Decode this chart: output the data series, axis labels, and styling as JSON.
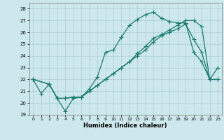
{
  "line1_x": [
    0,
    1,
    2,
    3,
    4,
    5,
    6,
    7,
    8,
    9,
    10,
    11,
    12,
    13,
    14,
    15,
    16,
    17,
    18,
    19,
    20,
    21,
    22,
    23
  ],
  "line1_y": [
    22.0,
    20.8,
    21.6,
    20.4,
    19.3,
    20.4,
    20.5,
    21.2,
    22.2,
    24.3,
    24.5,
    25.6,
    26.6,
    27.1,
    27.5,
    27.7,
    27.2,
    26.9,
    26.8,
    26.8,
    24.3,
    23.5,
    22.0,
    23.0
  ],
  "line2_x": [
    0,
    2,
    3,
    4,
    5,
    6,
    7,
    8,
    9,
    10,
    11,
    12,
    13,
    14,
    15,
    16,
    17,
    18,
    19,
    20,
    21,
    22,
    23
  ],
  "line2_y": [
    22.0,
    21.6,
    20.4,
    20.4,
    20.5,
    20.5,
    21.0,
    21.5,
    22.0,
    22.5,
    23.0,
    23.5,
    24.0,
    24.5,
    25.2,
    25.7,
    26.0,
    26.3,
    26.7,
    25.4,
    24.3,
    22.0,
    22.0
  ],
  "line3_x": [
    0,
    2,
    3,
    4,
    5,
    6,
    7,
    8,
    9,
    10,
    11,
    12,
    13,
    14,
    15,
    16,
    17,
    18,
    19,
    20,
    21,
    22,
    23
  ],
  "line3_y": [
    22.0,
    21.6,
    20.4,
    20.4,
    20.5,
    20.5,
    21.0,
    21.5,
    22.0,
    22.5,
    23.0,
    23.5,
    24.2,
    24.8,
    25.5,
    25.8,
    26.2,
    26.6,
    27.0,
    27.0,
    26.5,
    22.0,
    22.0
  ],
  "color": "#1a7a6e",
  "bg_color": "#cce8ec",
  "grid_color": "#aacdd4",
  "xlabel": "Humidex (Indice chaleur)",
  "xlim": [
    -0.5,
    23.5
  ],
  "ylim": [
    19,
    28.5
  ],
  "yticks": [
    19,
    20,
    21,
    22,
    23,
    24,
    25,
    26,
    27,
    28
  ],
  "xticks": [
    0,
    1,
    2,
    3,
    4,
    5,
    6,
    7,
    8,
    9,
    10,
    11,
    12,
    13,
    14,
    15,
    16,
    17,
    18,
    19,
    20,
    21,
    22,
    23
  ]
}
